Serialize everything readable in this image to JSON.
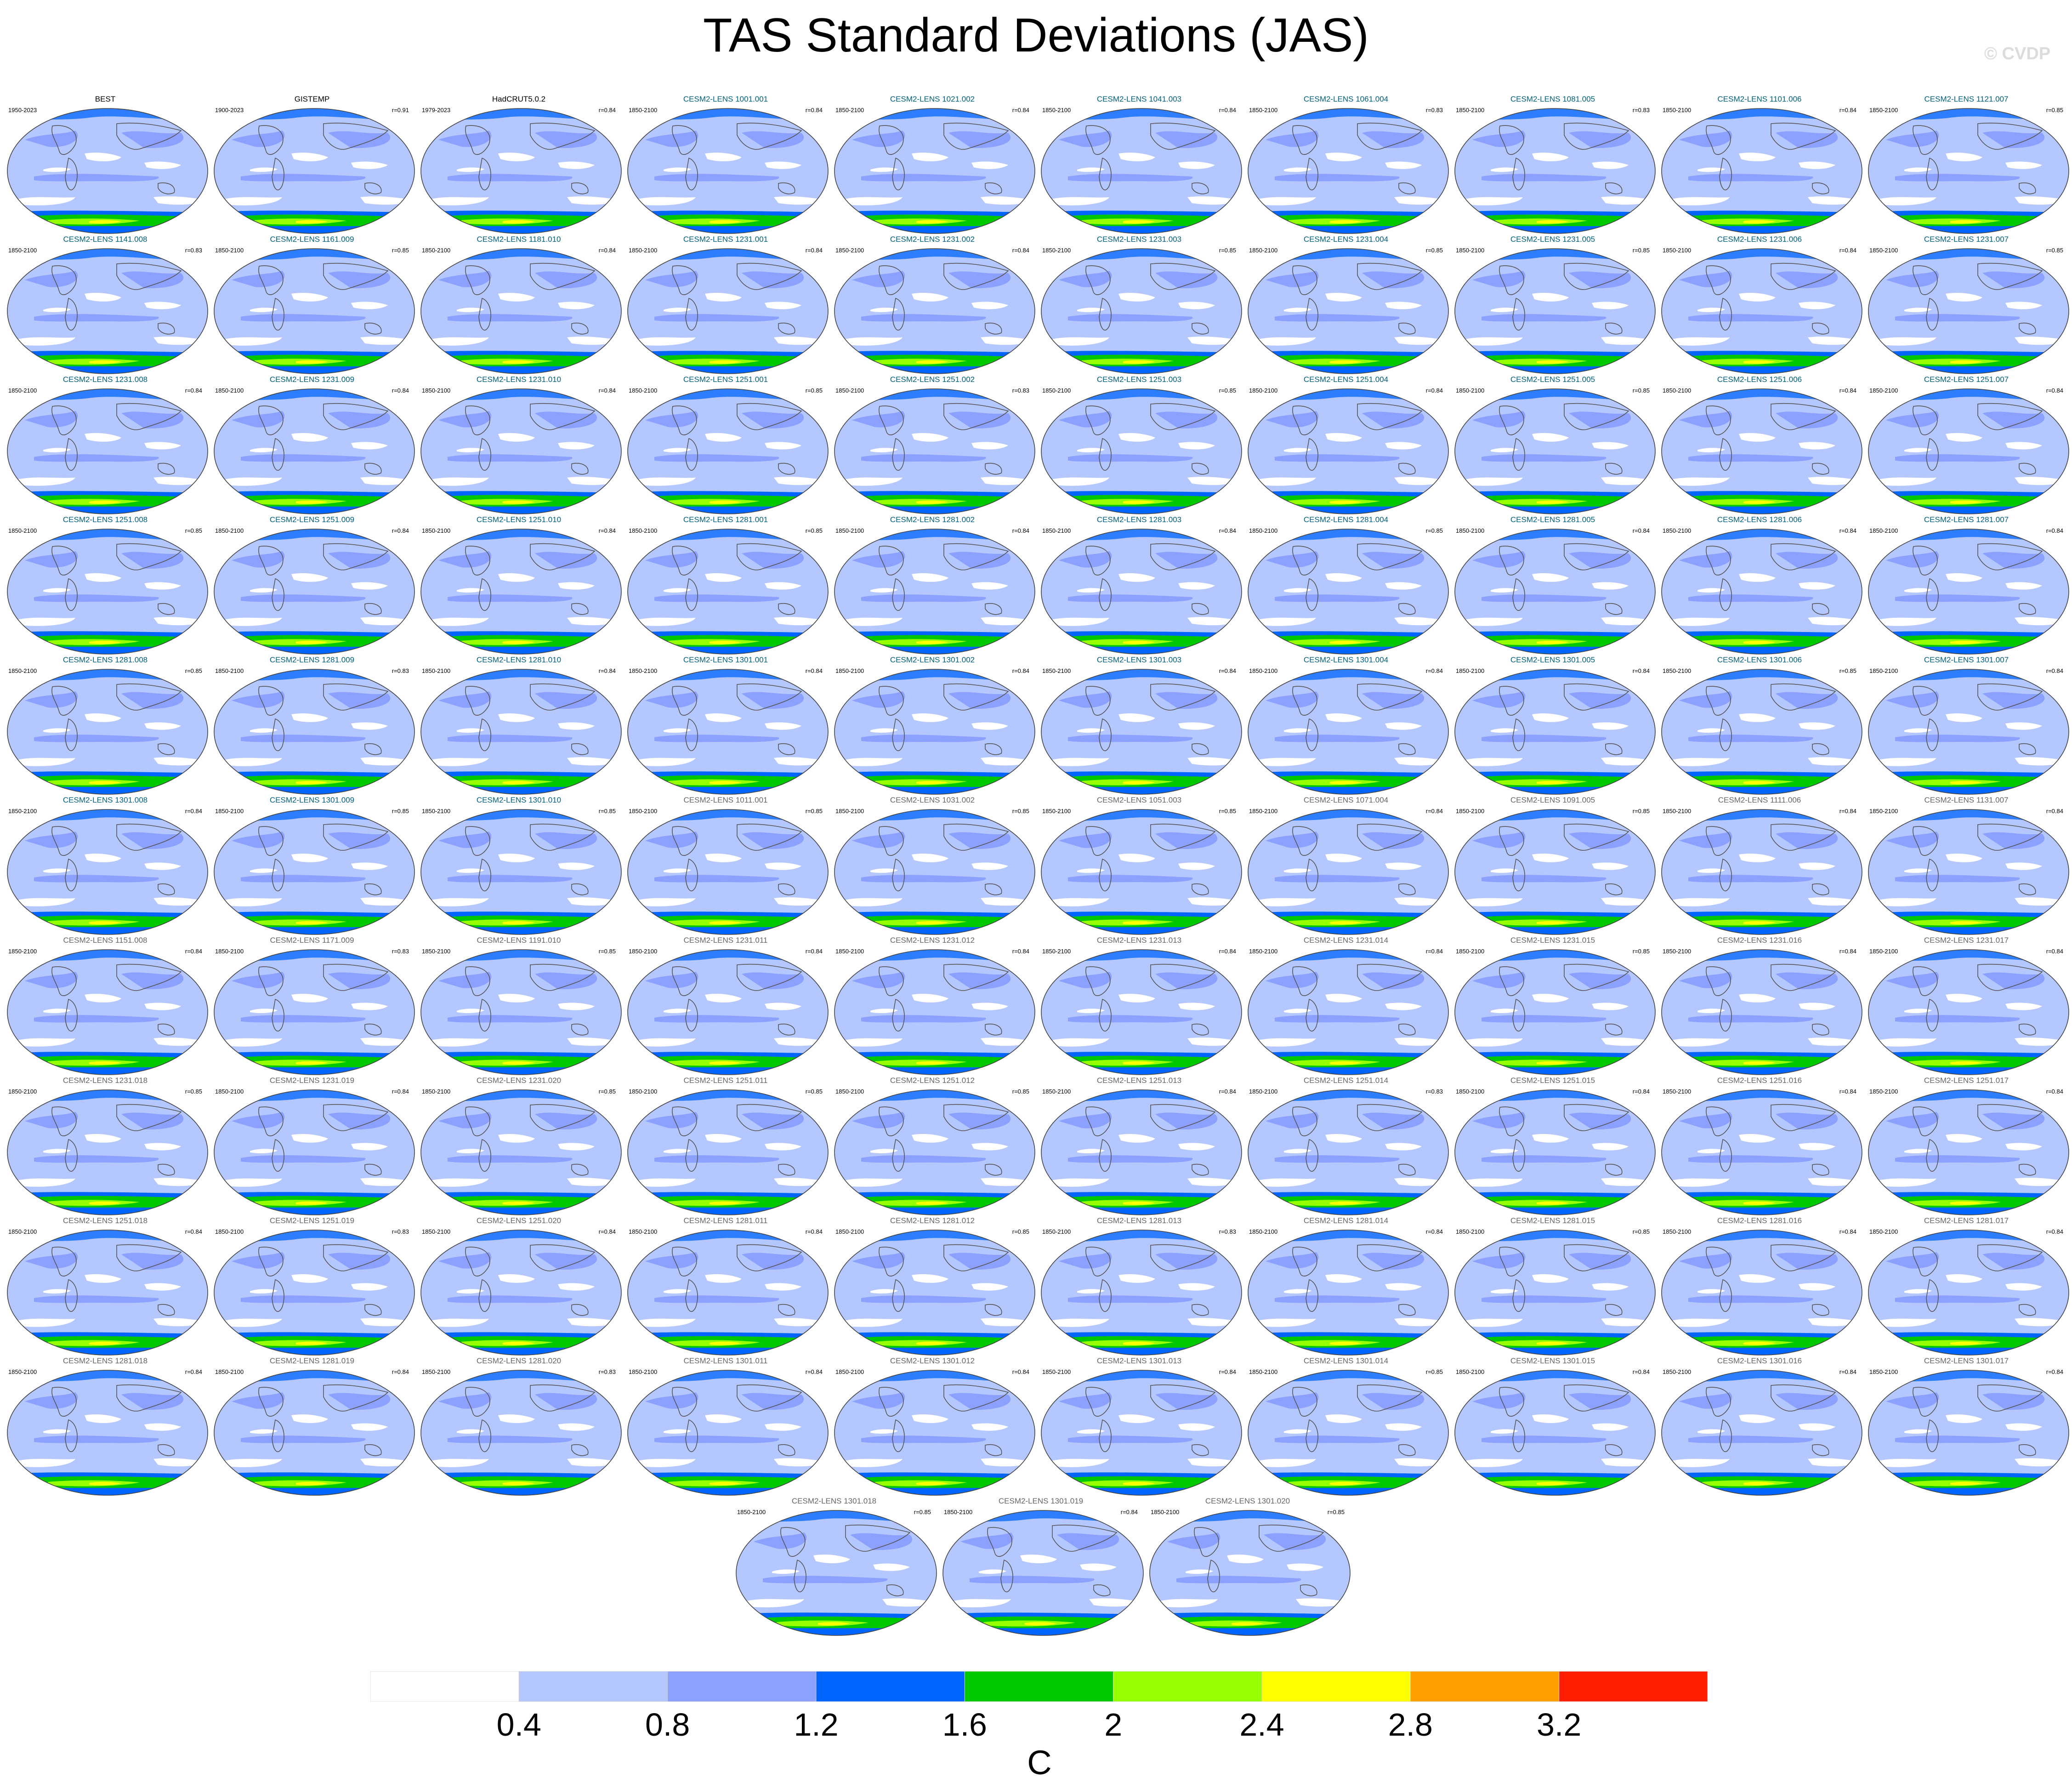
{
  "title": "TAS Standard Deviations (JAS)",
  "watermark": "© CVDP",
  "colors": {
    "obs_title": "#000000",
    "model_title": "#006080",
    "model_title_light": "#666666"
  },
  "panels": [
    {
      "left": "1950-2023",
      "title": "BEST",
      "r": "",
      "kind": "obs"
    },
    {
      "left": "1900-2023",
      "title": "GISTEMP",
      "r": "r=0.91",
      "kind": "obs"
    },
    {
      "left": "1979-2023",
      "title": "HadCRUT5.0.2",
      "r": "r=0.84",
      "kind": "obs"
    },
    {
      "left": "1850-2100",
      "title": "CESM2-LENS 1001.001",
      "r": "r=0.84",
      "kind": "model"
    },
    {
      "left": "1850-2100",
      "title": "CESM2-LENS 1021.002",
      "r": "r=0.84",
      "kind": "model"
    },
    {
      "left": "1850-2100",
      "title": "CESM2-LENS 1041.003",
      "r": "r=0.84",
      "kind": "model"
    },
    {
      "left": "1850-2100",
      "title": "CESM2-LENS 1061.004",
      "r": "r=0.83",
      "kind": "model"
    },
    {
      "left": "1850-2100",
      "title": "CESM2-LENS 1081.005",
      "r": "r=0.83",
      "kind": "model"
    },
    {
      "left": "1850-2100",
      "title": "CESM2-LENS 1101.006",
      "r": "r=0.84",
      "kind": "model"
    },
    {
      "left": "1850-2100",
      "title": "CESM2-LENS 1121.007",
      "r": "r=0.85",
      "kind": "model"
    },
    {
      "left": "1850-2100",
      "title": "CESM2-LENS 1141.008",
      "r": "r=0.83",
      "kind": "model"
    },
    {
      "left": "1850-2100",
      "title": "CESM2-LENS 1161.009",
      "r": "r=0.85",
      "kind": "model"
    },
    {
      "left": "1850-2100",
      "title": "CESM2-LENS 1181.010",
      "r": "r=0.84",
      "kind": "model"
    },
    {
      "left": "1850-2100",
      "title": "CESM2-LENS 1231.001",
      "r": "r=0.84",
      "kind": "model"
    },
    {
      "left": "1850-2100",
      "title": "CESM2-LENS 1231.002",
      "r": "r=0.84",
      "kind": "model"
    },
    {
      "left": "1850-2100",
      "title": "CESM2-LENS 1231.003",
      "r": "r=0.85",
      "kind": "model"
    },
    {
      "left": "1850-2100",
      "title": "CESM2-LENS 1231.004",
      "r": "r=0.85",
      "kind": "model"
    },
    {
      "left": "1850-2100",
      "title": "CESM2-LENS 1231.005",
      "r": "r=0.85",
      "kind": "model"
    },
    {
      "left": "1850-2100",
      "title": "CESM2-LENS 1231.006",
      "r": "r=0.84",
      "kind": "model"
    },
    {
      "left": "1850-2100",
      "title": "CESM2-LENS 1231.007",
      "r": "r=0.85",
      "kind": "model"
    },
    {
      "left": "1850-2100",
      "title": "CESM2-LENS 1231.008",
      "r": "r=0.84",
      "kind": "model"
    },
    {
      "left": "1850-2100",
      "title": "CESM2-LENS 1231.009",
      "r": "r=0.84",
      "kind": "model"
    },
    {
      "left": "1850-2100",
      "title": "CESM2-LENS 1231.010",
      "r": "r=0.84",
      "kind": "model"
    },
    {
      "left": "1850-2100",
      "title": "CESM2-LENS 1251.001",
      "r": "r=0.85",
      "kind": "model"
    },
    {
      "left": "1850-2100",
      "title": "CESM2-LENS 1251.002",
      "r": "r=0.83",
      "kind": "model"
    },
    {
      "left": "1850-2100",
      "title": "CESM2-LENS 1251.003",
      "r": "r=0.85",
      "kind": "model"
    },
    {
      "left": "1850-2100",
      "title": "CESM2-LENS 1251.004",
      "r": "r=0.84",
      "kind": "model"
    },
    {
      "left": "1850-2100",
      "title": "CESM2-LENS 1251.005",
      "r": "r=0.85",
      "kind": "model"
    },
    {
      "left": "1850-2100",
      "title": "CESM2-LENS 1251.006",
      "r": "r=0.84",
      "kind": "model"
    },
    {
      "left": "1850-2100",
      "title": "CESM2-LENS 1251.007",
      "r": "r=0.84",
      "kind": "model"
    },
    {
      "left": "1850-2100",
      "title": "CESM2-LENS 1251.008",
      "r": "r=0.85",
      "kind": "model"
    },
    {
      "left": "1850-2100",
      "title": "CESM2-LENS 1251.009",
      "r": "r=0.84",
      "kind": "model"
    },
    {
      "left": "1850-2100",
      "title": "CESM2-LENS 1251.010",
      "r": "r=0.84",
      "kind": "model"
    },
    {
      "left": "1850-2100",
      "title": "CESM2-LENS 1281.001",
      "r": "r=0.85",
      "kind": "model"
    },
    {
      "left": "1850-2100",
      "title": "CESM2-LENS 1281.002",
      "r": "r=0.84",
      "kind": "model"
    },
    {
      "left": "1850-2100",
      "title": "CESM2-LENS 1281.003",
      "r": "r=0.84",
      "kind": "model"
    },
    {
      "left": "1850-2100",
      "title": "CESM2-LENS 1281.004",
      "r": "r=0.85",
      "kind": "model"
    },
    {
      "left": "1850-2100",
      "title": "CESM2-LENS 1281.005",
      "r": "r=0.84",
      "kind": "model"
    },
    {
      "left": "1850-2100",
      "title": "CESM2-LENS 1281.006",
      "r": "r=0.84",
      "kind": "model"
    },
    {
      "left": "1850-2100",
      "title": "CESM2-LENS 1281.007",
      "r": "r=0.84",
      "kind": "model"
    },
    {
      "left": "1850-2100",
      "title": "CESM2-LENS 1281.008",
      "r": "r=0.85",
      "kind": "model"
    },
    {
      "left": "1850-2100",
      "title": "CESM2-LENS 1281.009",
      "r": "r=0.83",
      "kind": "model"
    },
    {
      "left": "1850-2100",
      "title": "CESM2-LENS 1281.010",
      "r": "r=0.84",
      "kind": "model"
    },
    {
      "left": "1850-2100",
      "title": "CESM2-LENS 1301.001",
      "r": "r=0.84",
      "kind": "model"
    },
    {
      "left": "1850-2100",
      "title": "CESM2-LENS 1301.002",
      "r": "r=0.84",
      "kind": "model"
    },
    {
      "left": "1850-2100",
      "title": "CESM2-LENS 1301.003",
      "r": "r=0.84",
      "kind": "model"
    },
    {
      "left": "1850-2100",
      "title": "CESM2-LENS 1301.004",
      "r": "r=0.84",
      "kind": "model"
    },
    {
      "left": "1850-2100",
      "title": "CESM2-LENS 1301.005",
      "r": "r=0.84",
      "kind": "model"
    },
    {
      "left": "1850-2100",
      "title": "CESM2-LENS 1301.006",
      "r": "r=0.85",
      "kind": "model"
    },
    {
      "left": "1850-2100",
      "title": "CESM2-LENS 1301.007",
      "r": "r=0.84",
      "kind": "model"
    },
    {
      "left": "1850-2100",
      "title": "CESM2-LENS 1301.008",
      "r": "r=0.84",
      "kind": "model"
    },
    {
      "left": "1850-2100",
      "title": "CESM2-LENS 1301.009",
      "r": "r=0.85",
      "kind": "model"
    },
    {
      "left": "1850-2100",
      "title": "CESM2-LENS 1301.010",
      "r": "r=0.85",
      "kind": "model"
    },
    {
      "left": "1850-2100",
      "title": "CESM2-LENS 1011.001",
      "r": "r=0.85",
      "kind": "light"
    },
    {
      "left": "1850-2100",
      "title": "CESM2-LENS 1031.002",
      "r": "r=0.85",
      "kind": "light"
    },
    {
      "left": "1850-2100",
      "title": "CESM2-LENS 1051.003",
      "r": "r=0.85",
      "kind": "light"
    },
    {
      "left": "1850-2100",
      "title": "CESM2-LENS 1071.004",
      "r": "r=0.84",
      "kind": "light"
    },
    {
      "left": "1850-2100",
      "title": "CESM2-LENS 1091.005",
      "r": "r=0.85",
      "kind": "light"
    },
    {
      "left": "1850-2100",
      "title": "CESM2-LENS 1111.006",
      "r": "r=0.84",
      "kind": "light"
    },
    {
      "left": "1850-2100",
      "title": "CESM2-LENS 1131.007",
      "r": "r=0.84",
      "kind": "light"
    },
    {
      "left": "1850-2100",
      "title": "CESM2-LENS 1151.008",
      "r": "r=0.84",
      "kind": "light"
    },
    {
      "left": "1850-2100",
      "title": "CESM2-LENS 1171.009",
      "r": "r=0.83",
      "kind": "light"
    },
    {
      "left": "1850-2100",
      "title": "CESM2-LENS 1191.010",
      "r": "r=0.85",
      "kind": "light"
    },
    {
      "left": "1850-2100",
      "title": "CESM2-LENS 1231.011",
      "r": "r=0.84",
      "kind": "light"
    },
    {
      "left": "1850-2100",
      "title": "CESM2-LENS 1231.012",
      "r": "r=0.84",
      "kind": "light"
    },
    {
      "left": "1850-2100",
      "title": "CESM2-LENS 1231.013",
      "r": "r=0.84",
      "kind": "light"
    },
    {
      "left": "1850-2100",
      "title": "CESM2-LENS 1231.014",
      "r": "r=0.84",
      "kind": "light"
    },
    {
      "left": "1850-2100",
      "title": "CESM2-LENS 1231.015",
      "r": "r=0.85",
      "kind": "light"
    },
    {
      "left": "1850-2100",
      "title": "CESM2-LENS 1231.016",
      "r": "r=0.84",
      "kind": "light"
    },
    {
      "left": "1850-2100",
      "title": "CESM2-LENS 1231.017",
      "r": "r=0.84",
      "kind": "light"
    },
    {
      "left": "1850-2100",
      "title": "CESM2-LENS 1231.018",
      "r": "r=0.85",
      "kind": "light"
    },
    {
      "left": "1850-2100",
      "title": "CESM2-LENS 1231.019",
      "r": "r=0.84",
      "kind": "light"
    },
    {
      "left": "1850-2100",
      "title": "CESM2-LENS 1231.020",
      "r": "r=0.85",
      "kind": "light"
    },
    {
      "left": "1850-2100",
      "title": "CESM2-LENS 1251.011",
      "r": "r=0.85",
      "kind": "light"
    },
    {
      "left": "1850-2100",
      "title": "CESM2-LENS 1251.012",
      "r": "r=0.85",
      "kind": "light"
    },
    {
      "left": "1850-2100",
      "title": "CESM2-LENS 1251.013",
      "r": "r=0.84",
      "kind": "light"
    },
    {
      "left": "1850-2100",
      "title": "CESM2-LENS 1251.014",
      "r": "r=0.83",
      "kind": "light"
    },
    {
      "left": "1850-2100",
      "title": "CESM2-LENS 1251.015",
      "r": "r=0.84",
      "kind": "light"
    },
    {
      "left": "1850-2100",
      "title": "CESM2-LENS 1251.016",
      "r": "r=0.84",
      "kind": "light"
    },
    {
      "left": "1850-2100",
      "title": "CESM2-LENS 1251.017",
      "r": "r=0.84",
      "kind": "light"
    },
    {
      "left": "1850-2100",
      "title": "CESM2-LENS 1251.018",
      "r": "r=0.84",
      "kind": "light"
    },
    {
      "left": "1850-2100",
      "title": "CESM2-LENS 1251.019",
      "r": "r=0.83",
      "kind": "light"
    },
    {
      "left": "1850-2100",
      "title": "CESM2-LENS 1251.020",
      "r": "r=0.84",
      "kind": "light"
    },
    {
      "left": "1850-2100",
      "title": "CESM2-LENS 1281.011",
      "r": "r=0.84",
      "kind": "light"
    },
    {
      "left": "1850-2100",
      "title": "CESM2-LENS 1281.012",
      "r": "r=0.85",
      "kind": "light"
    },
    {
      "left": "1850-2100",
      "title": "CESM2-LENS 1281.013",
      "r": "r=0.83",
      "kind": "light"
    },
    {
      "left": "1850-2100",
      "title": "CESM2-LENS 1281.014",
      "r": "r=0.84",
      "kind": "light"
    },
    {
      "left": "1850-2100",
      "title": "CESM2-LENS 1281.015",
      "r": "r=0.85",
      "kind": "light"
    },
    {
      "left": "1850-2100",
      "title": "CESM2-LENS 1281.016",
      "r": "r=0.84",
      "kind": "light"
    },
    {
      "left": "1850-2100",
      "title": "CESM2-LENS 1281.017",
      "r": "r=0.84",
      "kind": "light"
    },
    {
      "left": "1850-2100",
      "title": "CESM2-LENS 1281.018",
      "r": "r=0.84",
      "kind": "light"
    },
    {
      "left": "1850-2100",
      "title": "CESM2-LENS 1281.019",
      "r": "r=0.84",
      "kind": "light"
    },
    {
      "left": "1850-2100",
      "title": "CESM2-LENS 1281.020",
      "r": "r=0.83",
      "kind": "light"
    },
    {
      "left": "1850-2100",
      "title": "CESM2-LENS 1301.011",
      "r": "r=0.84",
      "kind": "light"
    },
    {
      "left": "1850-2100",
      "title": "CESM2-LENS 1301.012",
      "r": "r=0.84",
      "kind": "light"
    },
    {
      "left": "1850-2100",
      "title": "CESM2-LENS 1301.013",
      "r": "r=0.84",
      "kind": "light"
    },
    {
      "left": "1850-2100",
      "title": "CESM2-LENS 1301.014",
      "r": "r=0.85",
      "kind": "light"
    },
    {
      "left": "1850-2100",
      "title": "CESM2-LENS 1301.015",
      "r": "r=0.84",
      "kind": "light"
    },
    {
      "left": "1850-2100",
      "title": "CESM2-LENS 1301.016",
      "r": "r=0.84",
      "kind": "light"
    },
    {
      "left": "1850-2100",
      "title": "CESM2-LENS 1301.017",
      "r": "r=0.84",
      "kind": "light"
    },
    {
      "left": "1850-2100",
      "title": "CESM2-LENS 1301.018",
      "r": "r=0.85",
      "kind": "light"
    },
    {
      "left": "1850-2100",
      "title": "CESM2-LENS 1301.019",
      "r": "r=0.84",
      "kind": "light"
    },
    {
      "left": "1850-2100",
      "title": "CESM2-LENS 1301.020",
      "r": "r=0.85",
      "kind": "light"
    }
  ],
  "colorbar": {
    "colors": [
      "#ffffff",
      "#b4c8ff",
      "#8ca0ff",
      "#0064ff",
      "#00c800",
      "#96ff00",
      "#ffff00",
      "#ffa000",
      "#ff1e00"
    ],
    "ticks": [
      "0.4",
      "0.8",
      "1.2",
      "1.6",
      "2",
      "2.4",
      "2.8",
      "3.2"
    ],
    "unit": "C"
  }
}
